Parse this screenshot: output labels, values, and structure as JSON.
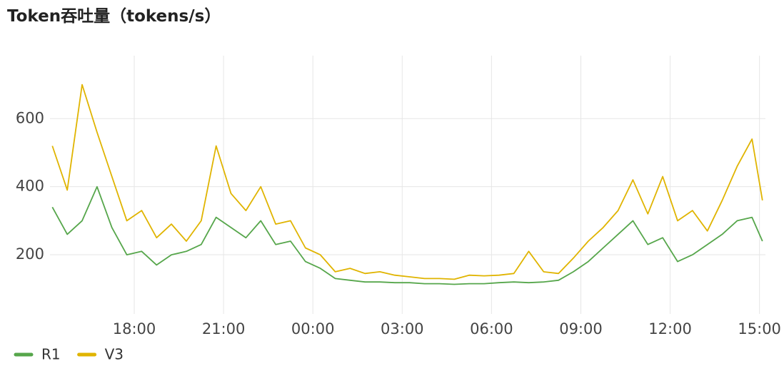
{
  "chart_data": {
    "type": "line",
    "title": "Token吞吐量（tokens/s）",
    "x": [
      15.25,
      15.75,
      16.25,
      16.75,
      17.25,
      17.75,
      18.25,
      18.75,
      19.25,
      19.75,
      20.25,
      20.75,
      21.25,
      21.75,
      22.25,
      22.75,
      23.25,
      23.75,
      24.25,
      24.75,
      25.25,
      25.75,
      26.25,
      26.75,
      27.25,
      27.75,
      28.25,
      28.75,
      29.25,
      29.75,
      30.25,
      30.75,
      31.25,
      31.75,
      32.25,
      32.75,
      33.25,
      33.75,
      34.25,
      34.75,
      35.25,
      35.75,
      36.25,
      36.75,
      37.25,
      37.75,
      38.25,
      38.75,
      39.1
    ],
    "series": [
      {
        "name": "R1",
        "color": "#56a64b",
        "values": [
          340,
          260,
          300,
          400,
          280,
          200,
          210,
          170,
          200,
          210,
          230,
          310,
          280,
          250,
          300,
          230,
          240,
          180,
          160,
          130,
          125,
          120,
          120,
          118,
          118,
          115,
          115,
          113,
          115,
          115,
          118,
          120,
          118,
          120,
          125,
          150,
          180,
          220,
          260,
          300,
          230,
          250,
          180,
          200,
          230,
          260,
          300,
          310,
          240
        ]
      },
      {
        "name": "V3",
        "color": "#e0b400",
        "values": [
          520,
          390,
          700,
          560,
          430,
          300,
          330,
          250,
          290,
          240,
          300,
          520,
          380,
          330,
          400,
          290,
          300,
          220,
          200,
          150,
          160,
          145,
          150,
          140,
          135,
          130,
          130,
          128,
          140,
          138,
          140,
          145,
          210,
          150,
          145,
          190,
          240,
          280,
          330,
          420,
          320,
          430,
          300,
          330,
          270,
          360,
          460,
          540,
          360
        ]
      }
    ],
    "xlim": [
      15.17,
      39.2
    ],
    "xticks": [
      {
        "value": 18,
        "label": "18:00"
      },
      {
        "value": 21,
        "label": "21:00"
      },
      {
        "value": 24,
        "label": "00:00"
      },
      {
        "value": 27,
        "label": "03:00"
      },
      {
        "value": 30,
        "label": "06:00"
      },
      {
        "value": 33,
        "label": "09:00"
      },
      {
        "value": 36,
        "label": "12:00"
      },
      {
        "value": 39,
        "label": "15:00"
      }
    ],
    "ylim": [
      68,
      760
    ],
    "yticks": [
      200,
      400,
      600
    ],
    "grid": true
  }
}
